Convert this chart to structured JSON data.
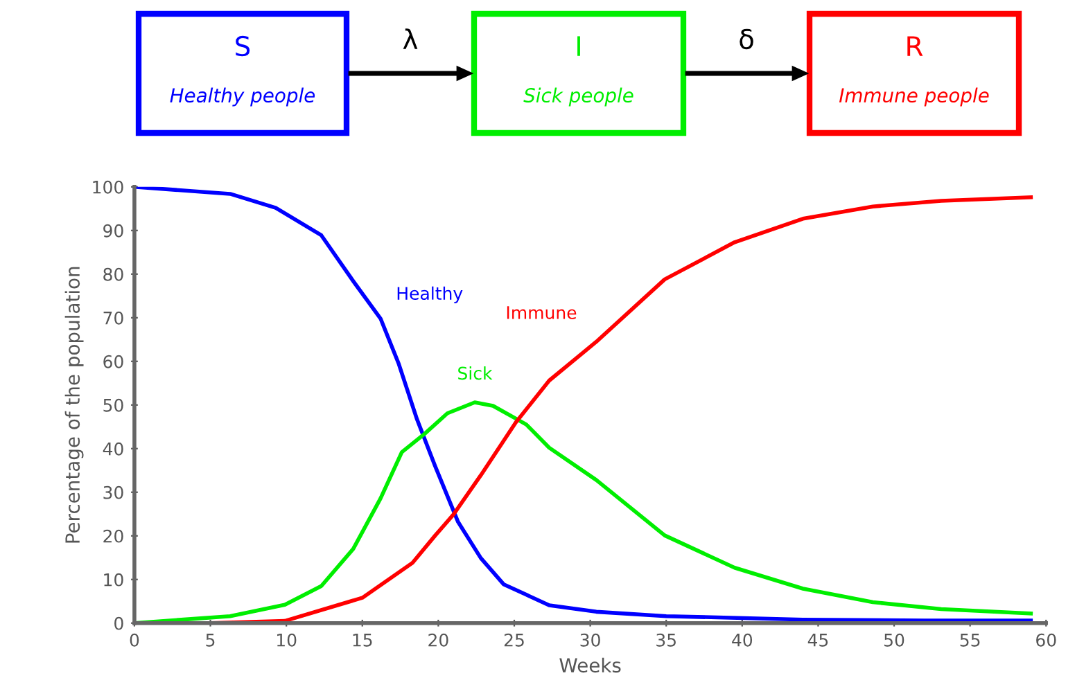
{
  "chart_data": {
    "type": "line",
    "xlabel": "Weeks",
    "ylabel": "Percentage of the population",
    "xlim": [
      0,
      60
    ],
    "ylim": [
      0,
      100
    ],
    "xticks": [
      0,
      5,
      10,
      15,
      20,
      25,
      30,
      35,
      40,
      45,
      50,
      55,
      60
    ],
    "yticks": [
      0,
      10,
      20,
      30,
      40,
      50,
      60,
      70,
      80,
      90,
      100
    ],
    "grid": false,
    "legend": false,
    "marker": "none",
    "line_style": "solid",
    "annotations": [
      "S",
      "Healthy people",
      "I",
      "Sick people",
      "R",
      "Immune people",
      "λ",
      "δ"
    ],
    "series": [
      {
        "name": "Healthy",
        "color": "#0000ff",
        "x": [
          0,
          6.3,
          9.3,
          12.3,
          14.4,
          16.2,
          17.4,
          18.6,
          19.8,
          21.3,
          22.8,
          24.3,
          25.8,
          27.3,
          30.4,
          35,
          44,
          52,
          59
        ],
        "values": [
          100,
          98.4,
          95.2,
          88.9,
          78.4,
          69.8,
          59.4,
          46.7,
          35.9,
          23.2,
          14.9,
          8.9,
          6.5,
          4.1,
          2.6,
          1.6,
          0.8,
          0.6,
          0.6
        ]
      },
      {
        "name": "Sick",
        "color": "#00ee00",
        "x": [
          0,
          6.3,
          9.9,
          12.3,
          14.4,
          16.2,
          17.6,
          19.1,
          20.6,
          22.4,
          23.6,
          25.1,
          25.8,
          27.3,
          30.4,
          34.9,
          39.5,
          44,
          48.6,
          53.1,
          59
        ],
        "values": [
          0,
          1.6,
          4.2,
          8.5,
          17,
          28.6,
          39.2,
          43.4,
          48.1,
          50.6,
          49.8,
          46.9,
          45.5,
          40.2,
          32.8,
          20.1,
          12.7,
          7.9,
          4.8,
          3.2,
          2.2
        ]
      },
      {
        "name": "Immune",
        "color": "#ff0000",
        "x": [
          0,
          5,
          9.9,
          15,
          18.3,
          19.8,
          21,
          22.8,
          25.1,
          27.3,
          30.4,
          34.9,
          39.5,
          44,
          48.6,
          53.1,
          59
        ],
        "values": [
          0,
          0,
          0.5,
          5.8,
          13.8,
          20.1,
          24.9,
          33.9,
          46,
          55.6,
          64.5,
          78.8,
          87.3,
          92.7,
          95.5,
          96.8,
          97.6
        ]
      }
    ]
  }
}
